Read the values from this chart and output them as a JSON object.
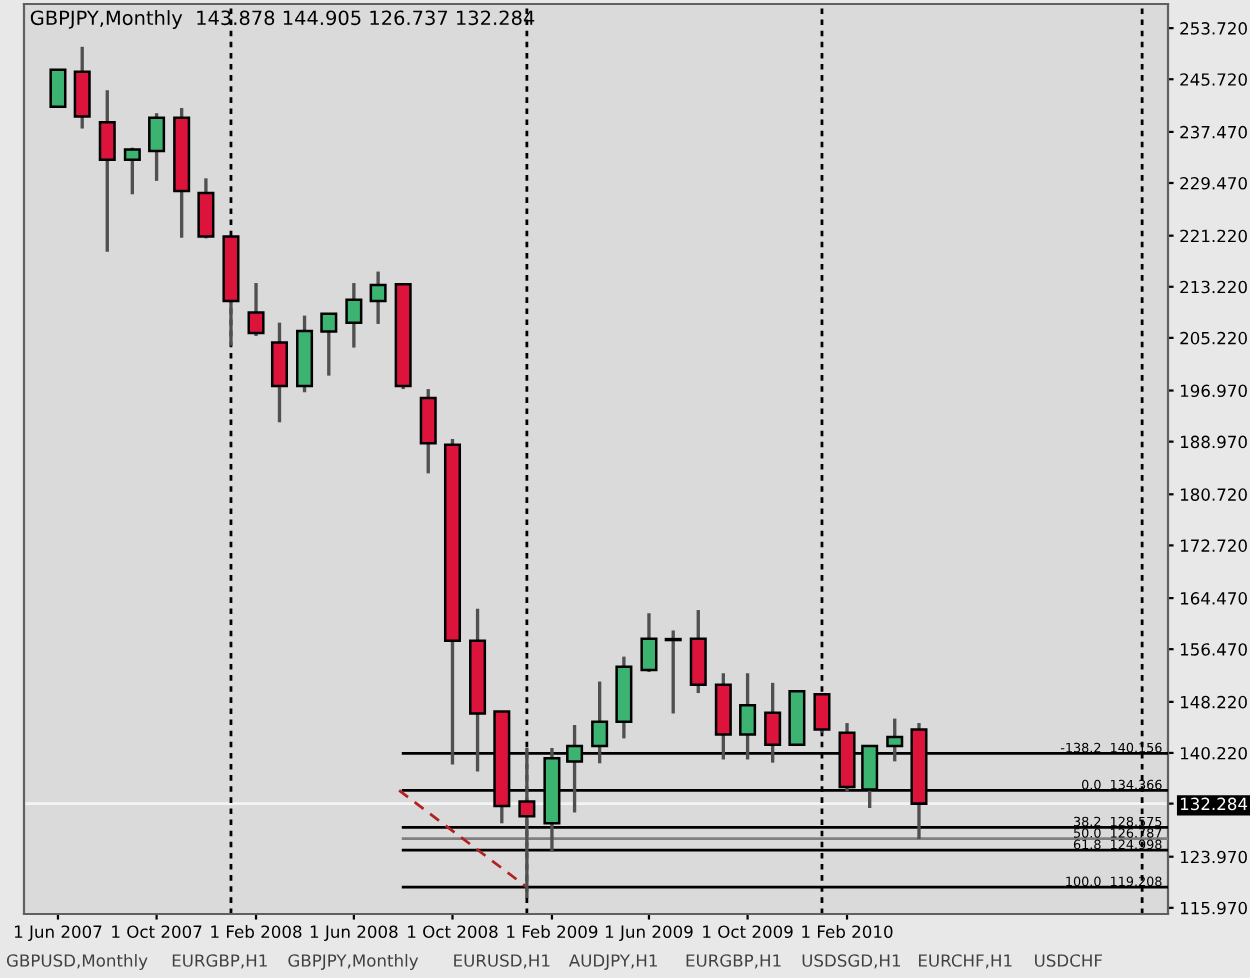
{
  "chart_data": {
    "type": "candlestick",
    "title": "GBPJPY,Monthly  143.878 144.905 126.737 132.284",
    "x": [
      "2007-06",
      "2007-07",
      "2007-08",
      "2007-09",
      "2007-10",
      "2007-11",
      "2007-12",
      "2008-01",
      "2008-02",
      "2008-03",
      "2008-04",
      "2008-05",
      "2008-06",
      "2008-07",
      "2008-08",
      "2008-09",
      "2008-10",
      "2008-11",
      "2008-12",
      "2009-01",
      "2009-02",
      "2009-03",
      "2009-04",
      "2009-05",
      "2009-06",
      "2009-07",
      "2009-08",
      "2009-09",
      "2009-10",
      "2009-11",
      "2009-12",
      "2010-01",
      "2010-02",
      "2010-03",
      "2010-04",
      "2010-05"
    ],
    "ohlc": [
      [
        241.4,
        247.2,
        241.4,
        247.2
      ],
      [
        246.9,
        250.8,
        238.0,
        239.9
      ],
      [
        239.0,
        244.0,
        218.7,
        233.1
      ],
      [
        233.1,
        235.0,
        227.7,
        234.7
      ],
      [
        234.5,
        240.4,
        229.8,
        239.7
      ],
      [
        239.7,
        241.2,
        220.9,
        228.2
      ],
      [
        227.9,
        230.2,
        220.8,
        221.1
      ],
      [
        221.1,
        221.2,
        204.0,
        211.0
      ],
      [
        209.2,
        213.8,
        205.5,
        206.0
      ],
      [
        204.5,
        207.6,
        192.0,
        197.7
      ],
      [
        197.7,
        208.7,
        196.7,
        206.3
      ],
      [
        206.2,
        209.0,
        199.3,
        209.0
      ],
      [
        207.6,
        213.8,
        203.7,
        211.2
      ],
      [
        211.0,
        215.6,
        207.4,
        213.5
      ],
      [
        213.6,
        213.7,
        197.2,
        197.7
      ],
      [
        195.8,
        197.2,
        184.0,
        188.7
      ],
      [
        188.5,
        189.4,
        138.4,
        157.8
      ],
      [
        157.8,
        162.8,
        137.3,
        146.4
      ],
      [
        146.7,
        146.8,
        129.2,
        131.9
      ],
      [
        132.6,
        141.0,
        117.5,
        130.3
      ],
      [
        129.2,
        141.0,
        124.8,
        139.4
      ],
      [
        138.9,
        144.6,
        130.9,
        141.3
      ],
      [
        141.3,
        151.4,
        138.6,
        145.1
      ],
      [
        145.1,
        155.3,
        142.5,
        153.7
      ],
      [
        153.2,
        162.1,
        152.9,
        158.1
      ],
      [
        157.9,
        159.4,
        146.4,
        158.0
      ],
      [
        158.1,
        162.6,
        149.6,
        150.9
      ],
      [
        150.9,
        152.7,
        139.2,
        143.1
      ],
      [
        143.1,
        152.7,
        139.2,
        147.7
      ],
      [
        146.5,
        151.2,
        138.7,
        141.5
      ],
      [
        141.5,
        150.0,
        141.3,
        149.9
      ],
      [
        149.4,
        149.5,
        143.4,
        143.9
      ],
      [
        143.4,
        144.9,
        134.2,
        134.9
      ],
      [
        134.5,
        141.4,
        131.6,
        141.3
      ],
      [
        141.3,
        145.6,
        138.9,
        142.7
      ],
      [
        143.878,
        144.905,
        126.737,
        132.284
      ]
    ],
    "colors": [
      "#3cb371",
      "#dc143c",
      "#dc143c",
      "#3cb371",
      "#3cb371",
      "#dc143c",
      "#dc143c",
      "#dc143c",
      "#dc143c",
      "#dc143c",
      "#3cb371",
      "#3cb371",
      "#3cb371",
      "#3cb371",
      "#dc143c",
      "#dc143c",
      "#dc143c",
      "#dc143c",
      "#dc143c",
      "#dc143c",
      "#3cb371",
      "#3cb371",
      "#3cb371",
      "#3cb371",
      "#3cb371",
      "#3cb371",
      "#dc143c",
      "#dc143c",
      "#3cb371",
      "#dc143c",
      "#3cb371",
      "#dc143c",
      "#dc143c",
      "#3cb371",
      "#3cb371",
      "#dc143c"
    ],
    "series": [
      {
        "type": "line",
        "color": "#000000",
        "x": [
          "2008-08",
          "2011-03-05"
        ],
        "values": [
          140.156,
          140.156
        ]
      },
      {
        "type": "line",
        "color": "#000000",
        "x": [
          "2008-08",
          "2011-03-05"
        ],
        "values": [
          134.366,
          134.366
        ]
      },
      {
        "type": "line",
        "color": "#000000",
        "x": [
          "2008-08",
          "2011-03-05"
        ],
        "values": [
          128.575,
          128.575
        ]
      },
      {
        "type": "line",
        "color": "#808080",
        "x": [
          "2008-08",
          "2011-03-05"
        ],
        "values": [
          126.787,
          126.787
        ]
      },
      {
        "type": "line",
        "color": "#000000",
        "x": [
          "2008-08",
          "2011-03-05"
        ],
        "values": [
          124.998,
          124.998
        ]
      },
      {
        "type": "line",
        "color": "#000000",
        "x": [
          "2008-08",
          "2011-03-05"
        ],
        "values": [
          119.208,
          119.208
        ]
      },
      {
        "type": "line",
        "color": "#b22222",
        "line_style": "dashed",
        "x": [
          "2008-07-27",
          "2009-01"
        ],
        "values": [
          134.366,
          119.208
        ]
      }
    ],
    "ref_lines": [
      {
        "axis": "y",
        "value": 132.284,
        "color": "#f4f4f4"
      },
      {
        "axis": "x",
        "value": "2008-01",
        "color": "#000000",
        "line_style": "dotted"
      },
      {
        "axis": "x",
        "value": "2009-01",
        "color": "#000000",
        "line_style": "dotted"
      },
      {
        "axis": "x",
        "value": "2010-01",
        "color": "#000000",
        "line_style": "dotted"
      },
      {
        "axis": "x",
        "value": "2011-02",
        "color": "#000000",
        "line_style": "dotted"
      }
    ],
    "annotations": [
      {
        "text": "-138.2  140.156",
        "x": "2011-03-05",
        "y": 140.156
      },
      {
        "text": "0.0  134.366",
        "x": "2011-03-05",
        "y": 134.366
      },
      {
        "text": "38.2  128.575",
        "x": "2011-03-05",
        "y": 128.575
      },
      {
        "text": "50.0  126.787",
        "x": "2011-03-05",
        "y": 126.787
      },
      {
        "text": "61.8  124.998",
        "x": "2011-03-05",
        "y": 124.998
      },
      {
        "text": "100.0  119.208",
        "x": "2011-03-05",
        "y": 119.208
      },
      "GBPUSD,Monthly",
      "EURGBP,H1",
      "GBPJPY,Monthly",
      "EURUSD,H1",
      "AUDJPY,H1",
      "EURGBP,H1",
      "USDSGD,H1",
      "EURCHF,H1",
      "USDCHF"
    ],
    "xlim": [
      "2007-04-20",
      "2011-03-05"
    ],
    "xticks": [
      {
        "value": "2007-06",
        "label": "1 Jun 2007"
      },
      {
        "value": "2007-10",
        "label": "1 Oct 2007"
      },
      {
        "value": "2008-02",
        "label": "1 Feb 2008"
      },
      {
        "value": "2008-06",
        "label": "1 Jun 2008"
      },
      {
        "value": "2008-10",
        "label": "1 Oct 2008"
      },
      {
        "value": "2009-02",
        "label": "1 Feb 2009"
      },
      {
        "value": "2009-06",
        "label": "1 Jun 2009"
      },
      {
        "value": "2009-10",
        "label": "1 Oct 2009"
      },
      {
        "value": "2010-02",
        "label": "1 Feb 2010"
      }
    ],
    "ylim": [
      115.0,
      257.5
    ],
    "yticks": [
      {
        "value": 253.72,
        "label": "253.720"
      },
      {
        "value": 245.72,
        "label": "245.720"
      },
      {
        "value": 237.47,
        "label": "237.470"
      },
      {
        "value": 229.47,
        "label": "229.470"
      },
      {
        "value": 221.22,
        "label": "221.220"
      },
      {
        "value": 213.22,
        "label": "213.220"
      },
      {
        "value": 205.22,
        "label": "205.220"
      },
      {
        "value": 196.97,
        "label": "196.970"
      },
      {
        "value": 188.97,
        "label": "188.970"
      },
      {
        "value": 180.72,
        "label": "180.720"
      },
      {
        "value": 172.72,
        "label": "172.720"
      },
      {
        "value": 164.47,
        "label": "164.470"
      },
      {
        "value": 156.47,
        "label": "156.470"
      },
      {
        "value": 148.22,
        "label": "148.220"
      },
      {
        "value": 140.22,
        "label": "140.220"
      },
      {
        "value": 132.284,
        "label": "132.284"
      },
      {
        "value": 123.97,
        "label": "123.970"
      },
      {
        "value": 115.97,
        "label": "115.970"
      }
    ],
    "grid": false
  }
}
